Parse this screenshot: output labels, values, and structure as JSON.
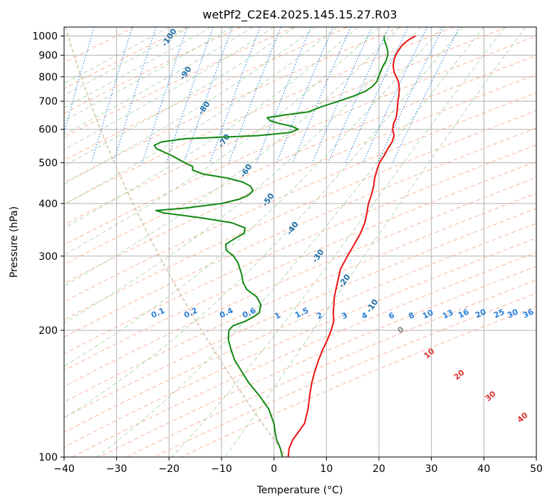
{
  "chart_data": {
    "type": "line",
    "title": "wetPf2_C2E4.2025.145.15.27.R03",
    "xlabel": "Temperature (°C)",
    "ylabel": "Pressure (hPa)",
    "xlim": [
      -40,
      50
    ],
    "ylim": [
      1050,
      100
    ],
    "y_scale": "log",
    "grid": true,
    "x_ticks": [
      "−40",
      "−30",
      "−20",
      "−10",
      "0",
      "10",
      "20",
      "30",
      "40",
      "50"
    ],
    "y_ticks": [
      "100",
      "200",
      "300",
      "400",
      "500",
      "600",
      "700",
      "800",
      "900",
      "1000"
    ],
    "colors": {
      "temperature": "#ee1111",
      "dewpoint": "#118811",
      "isotherm": "#b0b0b0",
      "dry_adiabat": "#f4a582",
      "moist_adiabat": "#9fd19f",
      "mixing_ratio": "#3a8fe0",
      "mixing_label": "#2a7fd8",
      "adiabat_label": "#1f6fa8",
      "moist_label": "#d33",
      "arc": "#d6c2a8"
    },
    "dry_adiabat_labels": [
      "-100",
      "-90",
      "-80",
      "-70",
      "-60",
      "-50",
      "-40",
      "-30",
      "-20",
      "-10"
    ],
    "moist_adiabat_labels": [
      "0",
      "10",
      "20",
      "30",
      "40"
    ],
    "mixing_ratio_labels": [
      "0.1",
      "0.2",
      "0.4",
      "0.6",
      "1",
      "1.5",
      "2",
      "3",
      "4",
      "6",
      "8",
      "10",
      "13",
      "16",
      "20",
      "25",
      "30",
      "36"
    ],
    "series": [
      {
        "name": "",
        "kind": "temperature",
        "points": [
          [
            1000,
            27
          ],
          [
            990,
            26.3
          ],
          [
            970,
            25.2
          ],
          [
            950,
            24.4
          ],
          [
            920,
            23.6
          ],
          [
            900,
            23.2
          ],
          [
            880,
            22.9
          ],
          [
            850,
            22.7
          ],
          [
            820,
            22.9
          ],
          [
            800,
            23.3
          ],
          [
            780,
            23.7
          ],
          [
            750,
            23.9
          ],
          [
            720,
            23.8
          ],
          [
            700,
            23.6
          ],
          [
            670,
            23.5
          ],
          [
            640,
            23.3
          ],
          [
            620,
            22.8
          ],
          [
            600,
            22.6
          ],
          [
            580,
            22.9
          ],
          [
            560,
            22.5
          ],
          [
            540,
            21.7
          ],
          [
            520,
            21
          ],
          [
            500,
            20.1
          ],
          [
            480,
            19.6
          ],
          [
            460,
            19.2
          ],
          [
            440,
            19
          ],
          [
            420,
            18.6
          ],
          [
            400,
            18
          ],
          [
            380,
            17.7
          ],
          [
            360,
            17.3
          ],
          [
            340,
            16.5
          ],
          [
            320,
            15.3
          ],
          [
            300,
            14
          ],
          [
            280,
            12.7
          ],
          [
            260,
            12.1
          ],
          [
            240,
            11.5
          ],
          [
            220,
            11.3
          ],
          [
            210,
            11.4
          ],
          [
            200,
            10.9
          ],
          [
            190,
            10.2
          ],
          [
            180,
            9.3
          ],
          [
            170,
            8.5
          ],
          [
            160,
            7.8
          ],
          [
            150,
            7.2
          ],
          [
            140,
            6.8
          ],
          [
            130,
            6.5
          ],
          [
            120,
            5.8
          ],
          [
            110,
            3.6
          ],
          [
            105,
            2.9
          ],
          [
            100,
            2.7
          ]
        ]
      },
      {
        "name": "",
        "kind": "dewpoint",
        "points": [
          [
            1000,
            21
          ],
          [
            980,
            21
          ],
          [
            950,
            21.4
          ],
          [
            920,
            21.7
          ],
          [
            900,
            21.7
          ],
          [
            870,
            21.3
          ],
          [
            850,
            20.8
          ],
          [
            820,
            20.3
          ],
          [
            800,
            19.9
          ],
          [
            780,
            19.6
          ],
          [
            760,
            18.8
          ],
          [
            740,
            17.5
          ],
          [
            720,
            15.2
          ],
          [
            700,
            12.3
          ],
          [
            680,
            9.2
          ],
          [
            660,
            6.5
          ],
          [
            650,
            2.3
          ],
          [
            640,
            -1.3
          ],
          [
            630,
            -0.8
          ],
          [
            620,
            0.9
          ],
          [
            610,
            3.5
          ],
          [
            600,
            4.6
          ],
          [
            590,
            3.1
          ],
          [
            580,
            -3
          ],
          [
            570,
            -17
          ],
          [
            560,
            -21.5
          ],
          [
            550,
            -22.8
          ],
          [
            540,
            -22.4
          ],
          [
            520,
            -19.5
          ],
          [
            500,
            -17
          ],
          [
            490,
            -15.5
          ],
          [
            480,
            -15.5
          ],
          [
            470,
            -13.5
          ],
          [
            460,
            -9
          ],
          [
            450,
            -6
          ],
          [
            440,
            -4.5
          ],
          [
            430,
            -4
          ],
          [
            420,
            -4.7
          ],
          [
            410,
            -6.5
          ],
          [
            400,
            -10
          ],
          [
            390,
            -17
          ],
          [
            385,
            -22.5
          ],
          [
            380,
            -21
          ],
          [
            370,
            -14
          ],
          [
            360,
            -8
          ],
          [
            350,
            -5.5
          ],
          [
            340,
            -5.7
          ],
          [
            330,
            -7.5
          ],
          [
            320,
            -9.2
          ],
          [
            310,
            -9.1
          ],
          [
            300,
            -7.7
          ],
          [
            290,
            -6.9
          ],
          [
            280,
            -6.5
          ],
          [
            270,
            -6.1
          ],
          [
            260,
            -5.9
          ],
          [
            250,
            -5.2
          ],
          [
            240,
            -3.3
          ],
          [
            230,
            -2.5
          ],
          [
            220,
            -2.8
          ],
          [
            215,
            -4
          ],
          [
            210,
            -5.5
          ],
          [
            205,
            -7.8
          ],
          [
            200,
            -8.6
          ],
          [
            190,
            -8.7
          ],
          [
            180,
            -8.2
          ],
          [
            170,
            -7.5
          ],
          [
            160,
            -6.2
          ],
          [
            150,
            -4.8
          ],
          [
            140,
            -2.8
          ],
          [
            130,
            -1
          ],
          [
            120,
            0
          ],
          [
            115,
            0.2
          ],
          [
            110,
            0.5
          ],
          [
            105,
            1.2
          ],
          [
            100,
            1.6
          ]
        ]
      }
    ]
  }
}
